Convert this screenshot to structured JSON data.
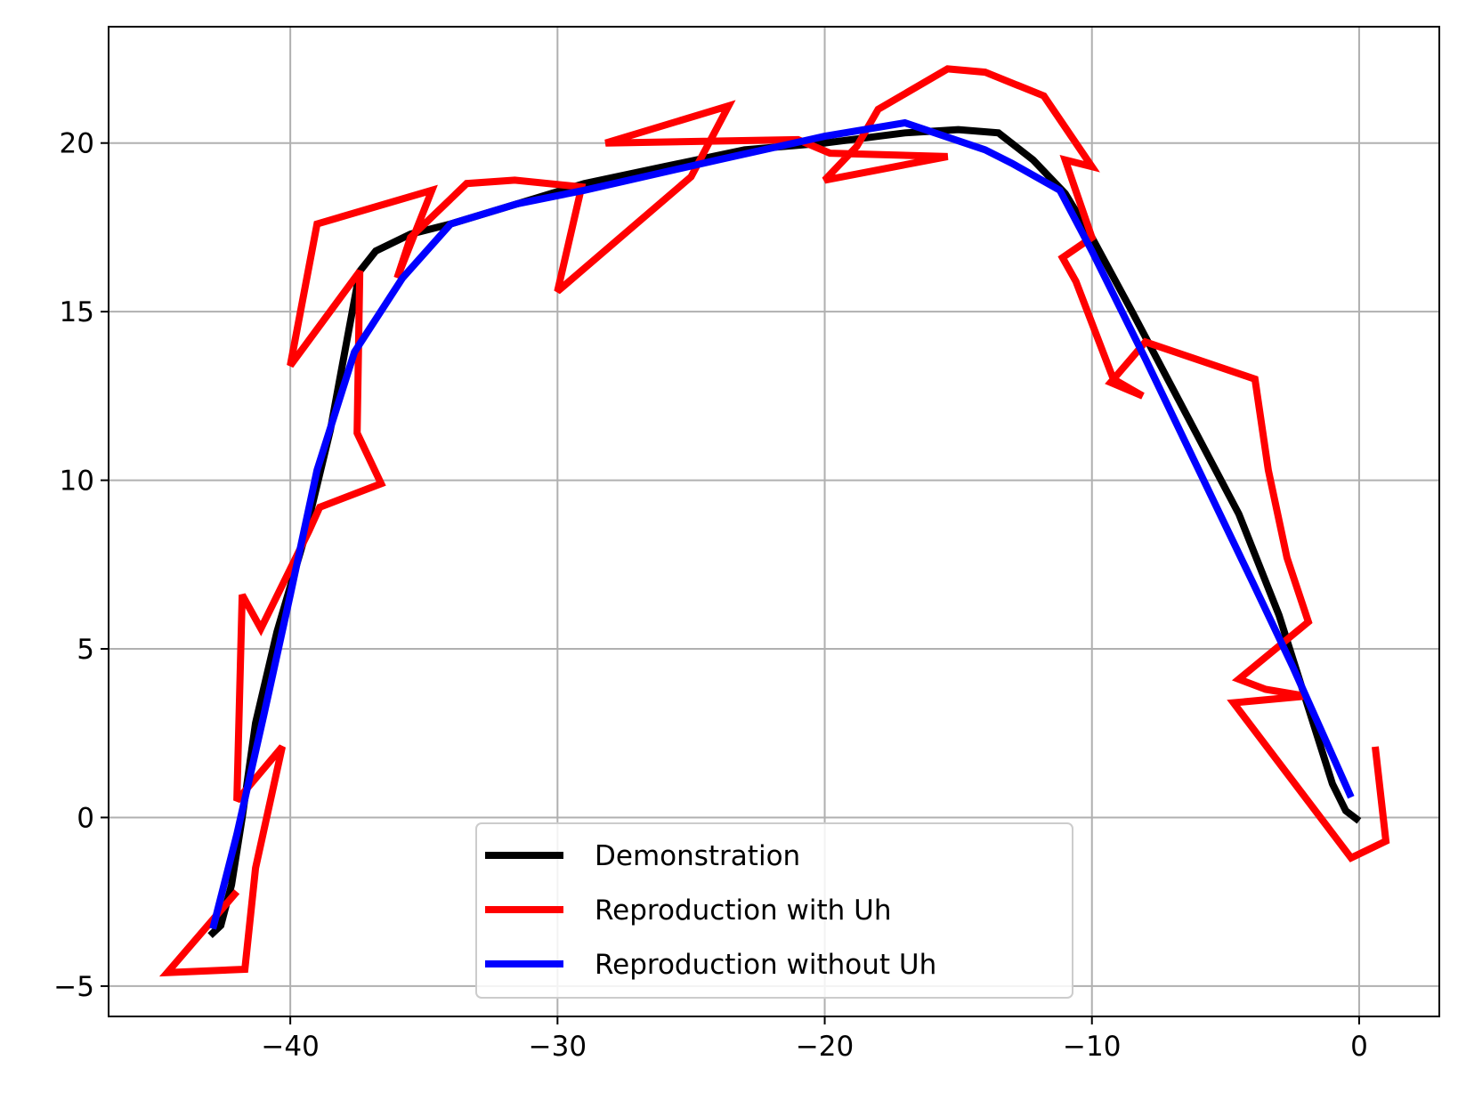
{
  "chart_data": {
    "type": "line",
    "title": "",
    "xlabel": "",
    "ylabel": "",
    "xlim": [
      -46.8,
      3.0
    ],
    "ylim": [
      -5.9,
      23.45
    ],
    "grid": true,
    "legend_position": "bottom-center",
    "xticks": [
      {
        "value": -40,
        "label": "−40"
      },
      {
        "value": -30,
        "label": "−30"
      },
      {
        "value": -20,
        "label": "−20"
      },
      {
        "value": -10,
        "label": "−10"
      },
      {
        "value": 0,
        "label": "0"
      }
    ],
    "yticks": [
      {
        "value": -5,
        "label": "−5"
      },
      {
        "value": 0,
        "label": "0"
      },
      {
        "value": 5,
        "label": "5"
      },
      {
        "value": 10,
        "label": "10"
      },
      {
        "value": 15,
        "label": "15"
      },
      {
        "value": 20,
        "label": "20"
      }
    ],
    "series": [
      {
        "name": "Demonstration",
        "color": "#000000",
        "points": [
          [
            -43.0,
            -3.5
          ],
          [
            -42.6,
            -3.2
          ],
          [
            -42.2,
            -2.0
          ],
          [
            -41.8,
            0.0
          ],
          [
            -41.3,
            2.8
          ],
          [
            -40.5,
            5.5
          ],
          [
            -39.5,
            8.2
          ],
          [
            -38.5,
            11.5
          ],
          [
            -37.8,
            14.5
          ],
          [
            -37.4,
            16.2
          ],
          [
            -36.8,
            16.8
          ],
          [
            -35.5,
            17.3
          ],
          [
            -34.0,
            17.6
          ],
          [
            -31.5,
            18.2
          ],
          [
            -29.0,
            18.8
          ],
          [
            -26.0,
            19.3
          ],
          [
            -23.0,
            19.8
          ],
          [
            -20.0,
            20.0
          ],
          [
            -17.0,
            20.3
          ],
          [
            -15.0,
            20.4
          ],
          [
            -13.5,
            20.3
          ],
          [
            -12.2,
            19.5
          ],
          [
            -11.0,
            18.5
          ],
          [
            -10.0,
            17.2
          ],
          [
            -8.5,
            15.0
          ],
          [
            -6.5,
            12.0
          ],
          [
            -4.5,
            9.0
          ],
          [
            -3.0,
            6.0
          ],
          [
            -1.8,
            3.0
          ],
          [
            -1.0,
            1.0
          ],
          [
            -0.5,
            0.2
          ],
          [
            0.0,
            -0.1
          ]
        ]
      },
      {
        "name": "Reproduction with Uh",
        "color": "#ff0000",
        "points": [
          [
            -42.0,
            -2.2
          ],
          [
            -44.6,
            -4.6
          ],
          [
            -41.7,
            -4.5
          ],
          [
            -41.3,
            -1.5
          ],
          [
            -40.3,
            2.1
          ],
          [
            -42.0,
            0.5
          ],
          [
            -41.8,
            6.6
          ],
          [
            -41.1,
            5.6
          ],
          [
            -39.3,
            8.5
          ],
          [
            -38.9,
            9.2
          ],
          [
            -36.6,
            9.9
          ],
          [
            -37.5,
            11.4
          ],
          [
            -37.4,
            16.2
          ],
          [
            -40.0,
            13.4
          ],
          [
            -39.0,
            17.6
          ],
          [
            -34.7,
            18.6
          ],
          [
            -36.0,
            16.0
          ],
          [
            -35.5,
            17.2
          ],
          [
            -33.4,
            18.8
          ],
          [
            -31.6,
            18.9
          ],
          [
            -29.1,
            18.7
          ],
          [
            -30.0,
            15.6
          ],
          [
            -25.0,
            19.0
          ],
          [
            -23.6,
            21.1
          ],
          [
            -28.2,
            20.0
          ],
          [
            -21.0,
            20.1
          ],
          [
            -19.8,
            19.7
          ],
          [
            -15.4,
            19.6
          ],
          [
            -20.0,
            18.9
          ],
          [
            -18.8,
            19.9
          ],
          [
            -18.0,
            21.0
          ],
          [
            -15.4,
            22.2
          ],
          [
            -14.0,
            22.1
          ],
          [
            -11.8,
            21.4
          ],
          [
            -10.0,
            19.3
          ],
          [
            -11.0,
            19.5
          ],
          [
            -10.0,
            17.2
          ],
          [
            -11.1,
            16.6
          ],
          [
            -10.6,
            15.9
          ],
          [
            -9.2,
            13.0
          ],
          [
            -8.1,
            12.5
          ],
          [
            -9.3,
            12.9
          ],
          [
            -8.0,
            14.1
          ],
          [
            -3.9,
            13.0
          ],
          [
            -3.4,
            10.3
          ],
          [
            -2.7,
            7.7
          ],
          [
            -1.9,
            5.8
          ],
          [
            -4.5,
            4.1
          ],
          [
            -3.5,
            3.8
          ],
          [
            -2.0,
            3.6
          ],
          [
            -4.7,
            3.4
          ],
          [
            -0.3,
            -1.2
          ],
          [
            1.0,
            -0.7
          ],
          [
            0.6,
            2.1
          ]
        ]
      },
      {
        "name": "Reproduction without Uh",
        "color": "#0000ff",
        "points": [
          [
            -42.9,
            -3.3
          ],
          [
            -42.0,
            -0.5
          ],
          [
            -41.0,
            3.0
          ],
          [
            -40.0,
            6.6
          ],
          [
            -39.0,
            10.3
          ],
          [
            -37.6,
            13.8
          ],
          [
            -35.8,
            16.0
          ],
          [
            -34.0,
            17.6
          ],
          [
            -31.5,
            18.2
          ],
          [
            -29.0,
            18.6
          ],
          [
            -24.0,
            19.5
          ],
          [
            -20.0,
            20.2
          ],
          [
            -17.0,
            20.6
          ],
          [
            -14.0,
            19.8
          ],
          [
            -13.0,
            19.4
          ],
          [
            -11.2,
            18.6
          ],
          [
            -10.0,
            16.8
          ],
          [
            -8.0,
            13.6
          ],
          [
            -6.0,
            10.3
          ],
          [
            -4.0,
            7.0
          ],
          [
            -2.5,
            4.5
          ],
          [
            -0.3,
            0.6
          ]
        ]
      }
    ]
  }
}
